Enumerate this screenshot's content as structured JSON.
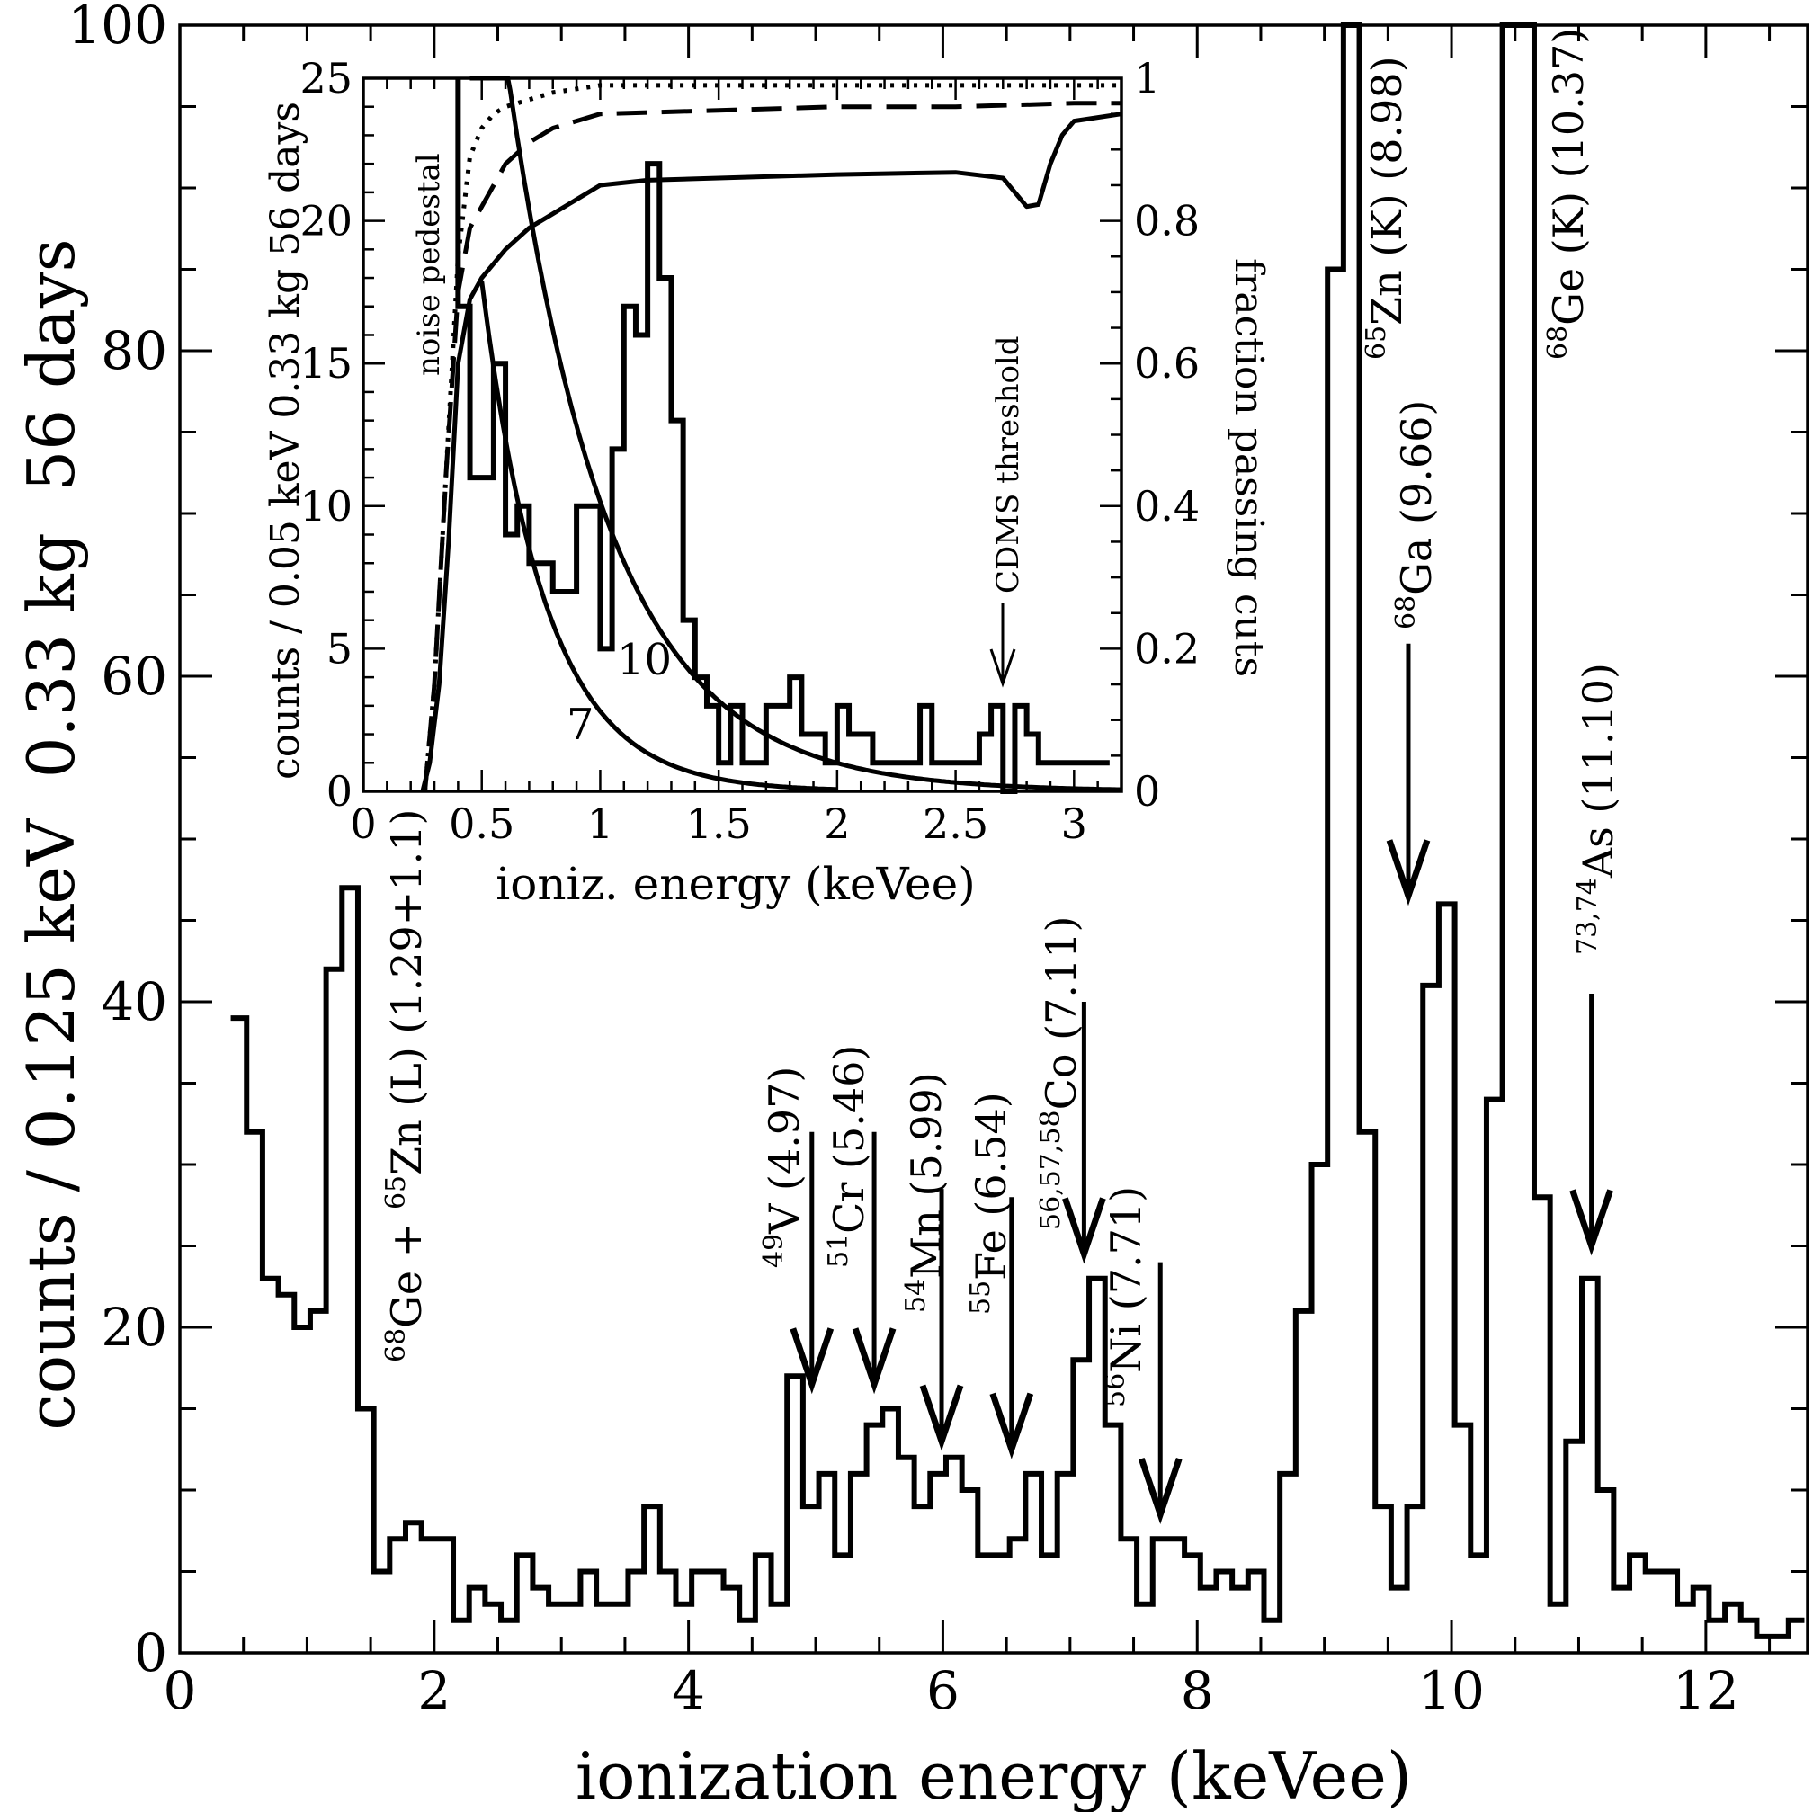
{
  "chart_data": [
    {
      "type": "line",
      "xlabel": "ionization energy (keVee)",
      "ylabel": "counts / 0.125 keV  0.33 kg  56 days",
      "xlim": [
        0,
        12.8
      ],
      "ylim": [
        0,
        100
      ],
      "x_ticks": [
        0,
        2,
        4,
        6,
        8,
        10,
        12
      ],
      "y_ticks": [
        0,
        20,
        40,
        60,
        80,
        100
      ],
      "grid": false,
      "series": [
        {
          "style": "histogram",
          "edges": [
            0.4,
            0.525,
            0.65,
            0.775,
            0.9,
            1.025,
            1.15,
            1.275,
            1.4,
            1.525,
            1.65,
            1.775,
            1.9,
            2.025,
            2.15,
            2.275,
            2.4,
            2.525,
            2.65,
            2.775,
            2.9,
            3.025,
            3.15,
            3.275,
            3.4,
            3.525,
            3.65,
            3.775,
            3.9,
            4.025,
            4.15,
            4.275,
            4.4,
            4.525,
            4.65,
            4.775,
            4.9,
            5.025,
            5.15,
            5.275,
            5.4,
            5.525,
            5.65,
            5.775,
            5.9,
            6.025,
            6.15,
            6.275,
            6.4,
            6.525,
            6.65,
            6.775,
            6.9,
            7.025,
            7.15,
            7.275,
            7.4,
            7.525,
            7.65,
            7.775,
            7.9,
            8.025,
            8.15,
            8.275,
            8.4,
            8.525,
            8.65,
            8.775,
            8.9,
            9.025,
            9.15,
            9.275,
            9.4,
            9.525,
            9.65,
            9.775,
            9.9,
            10.025,
            10.15,
            10.275,
            10.4,
            10.525,
            10.65,
            10.775,
            10.9,
            11.025,
            11.15,
            11.275,
            11.4,
            11.525,
            11.65,
            11.775,
            11.9,
            12.025,
            12.15,
            12.275,
            12.4,
            12.525,
            12.65,
            12.775
          ],
          "counts": [
            39,
            32,
            23,
            22,
            20,
            21,
            42,
            47,
            15,
            5,
            7,
            8,
            7,
            7,
            2,
            4,
            3,
            2,
            6,
            4,
            3,
            3,
            5,
            3,
            3,
            5,
            9,
            5,
            3,
            5,
            5,
            4,
            2,
            6,
            3,
            17,
            9,
            11,
            6,
            11,
            14,
            15,
            12,
            9,
            11,
            12,
            10,
            6,
            6,
            7,
            11,
            6,
            11,
            18,
            23,
            14,
            7,
            3,
            7,
            7,
            6,
            4,
            5,
            4,
            5,
            2,
            11,
            21,
            30,
            85,
            100,
            32,
            9,
            4,
            9,
            41,
            46,
            14,
            6,
            34,
            100,
            100,
            28,
            3,
            13,
            23,
            10,
            4,
            6,
            5,
            5,
            3,
            4,
            2,
            3,
            2,
            1,
            1,
            2
          ]
        }
      ],
      "annotations": [
        {
          "nucleus_pre": "68",
          "label_a": "Ge + ",
          "nucleus_mid": "65",
          "label_b": "Zn (L) (1.29+1.1)"
        },
        {
          "sup": "49",
          "label": "V (4.97)",
          "x": 4.97
        },
        {
          "sup": "51",
          "label": "Cr (5.46)",
          "x": 5.46
        },
        {
          "sup": "54",
          "label": "Mn (5.99)",
          "x": 5.99
        },
        {
          "sup": "55",
          "label": "Fe (6.54)",
          "x": 6.54
        },
        {
          "sup": "56,57,58",
          "label": "Co (7.11)",
          "x": 7.11
        },
        {
          "sup": "56",
          "label": "Ni (7.71)",
          "x": 7.71
        },
        {
          "sup": "65",
          "label": "Zn (K) (8.98)"
        },
        {
          "sup": "68",
          "label": "Ga (9.66)",
          "x": 9.66
        },
        {
          "sup": "68",
          "label": "Ge (K) (10.37)"
        },
        {
          "sup": "73,74",
          "label": "As (11.10)",
          "x": 11.1
        }
      ]
    },
    {
      "type": "line",
      "xlabel": "ioniz. energy (keVee)",
      "ylabel": "counts / 0.05 keV 0.33 kg 56 days",
      "y2label": "fraction passing cuts",
      "xlim": [
        0,
        3.2
      ],
      "ylim": [
        0,
        25
      ],
      "y2lim": [
        0,
        1.0
      ],
      "x_ticks": [
        0,
        0.5,
        1,
        1.5,
        2,
        2.5,
        3
      ],
      "y_ticks": [
        0,
        5,
        10,
        15,
        20,
        25
      ],
      "y2_ticks": [
        0,
        0.2,
        0.4,
        0.6,
        0.8,
        1
      ],
      "grid": false,
      "series": [
        {
          "style": "histogram",
          "edges": [
            0.4,
            0.45,
            0.5,
            0.55,
            0.6,
            0.65,
            0.7,
            0.75,
            0.8,
            0.85,
            0.9,
            0.95,
            1.0,
            1.05,
            1.1,
            1.15,
            1.2,
            1.25,
            1.3,
            1.35,
            1.4,
            1.45,
            1.5,
            1.55,
            1.6,
            1.65,
            1.7,
            1.75,
            1.8,
            1.85,
            1.9,
            1.95,
            2.0,
            2.05,
            2.1,
            2.15,
            2.2,
            2.25,
            2.3,
            2.35,
            2.4,
            2.45,
            2.5,
            2.55,
            2.6,
            2.65,
            2.7,
            2.75,
            2.8,
            2.85,
            2.9,
            2.95,
            3.0,
            3.05,
            3.1,
            3.15
          ],
          "counts": [
            17,
            11,
            11,
            15,
            9,
            10,
            8,
            8,
            7,
            7,
            10,
            10,
            5,
            12,
            17,
            16,
            22,
            18,
            13,
            6,
            4,
            3,
            1,
            3,
            1,
            1,
            3,
            3,
            4,
            2,
            2,
            1,
            3,
            2,
            2,
            1,
            1,
            1,
            1,
            3,
            1,
            1,
            1,
            1,
            2,
            3,
            0,
            3,
            2,
            1,
            1,
            1,
            1,
            1,
            1
          ]
        },
        {
          "name": "7",
          "style": "solid",
          "amplitude": 25.9,
          "decay_keV": 0.27,
          "from": 0.5,
          "to": 2.0
        },
        {
          "name": "10",
          "style": "solid",
          "amplitude": 41.0,
          "decay_keV": 0.43,
          "from": 0.45,
          "to": 3.2
        },
        {
          "style": "dotted",
          "axis": "y2",
          "x": [
            0.26,
            0.3,
            0.35,
            0.4,
            0.45,
            0.5,
            0.55,
            0.6,
            0.7,
            0.8,
            0.9,
            1.0,
            1.5,
            2.0,
            2.5,
            3.0,
            3.2
          ],
          "y": [
            0.0,
            0.15,
            0.45,
            0.75,
            0.89,
            0.93,
            0.95,
            0.96,
            0.97,
            0.98,
            0.985,
            0.99,
            0.99,
            0.99,
            0.99,
            0.99,
            0.99
          ]
        },
        {
          "style": "dashed",
          "axis": "y2",
          "x": [
            0.26,
            0.3,
            0.35,
            0.4,
            0.45,
            0.5,
            0.55,
            0.6,
            0.7,
            0.8,
            0.9,
            1.0,
            1.5,
            2.0,
            2.5,
            3.0,
            3.2
          ],
          "y": [
            0.0,
            0.15,
            0.45,
            0.7,
            0.79,
            0.82,
            0.85,
            0.88,
            0.91,
            0.93,
            0.94,
            0.95,
            0.955,
            0.96,
            0.96,
            0.965,
            0.965
          ]
        },
        {
          "style": "solid",
          "axis": "y2",
          "x": [
            0.25,
            0.28,
            0.32,
            0.36,
            0.4,
            0.45,
            0.5,
            0.6,
            0.7,
            0.8,
            0.9,
            1.0,
            1.2,
            1.5,
            2.0,
            2.5,
            2.7,
            2.8,
            2.85,
            2.9,
            2.95,
            3.0,
            3.2
          ],
          "y": [
            0.0,
            0.04,
            0.15,
            0.35,
            0.6,
            0.69,
            0.72,
            0.76,
            0.79,
            0.81,
            0.83,
            0.85,
            0.857,
            0.86,
            0.865,
            0.868,
            0.86,
            0.82,
            0.823,
            0.88,
            0.92,
            0.94,
            0.95
          ]
        }
      ],
      "annotations": [
        {
          "label": "noise pedestal"
        },
        {
          "label": "CDMS threshold",
          "x": 2.7
        },
        {
          "label": "7"
        },
        {
          "label": "10"
        }
      ]
    }
  ]
}
